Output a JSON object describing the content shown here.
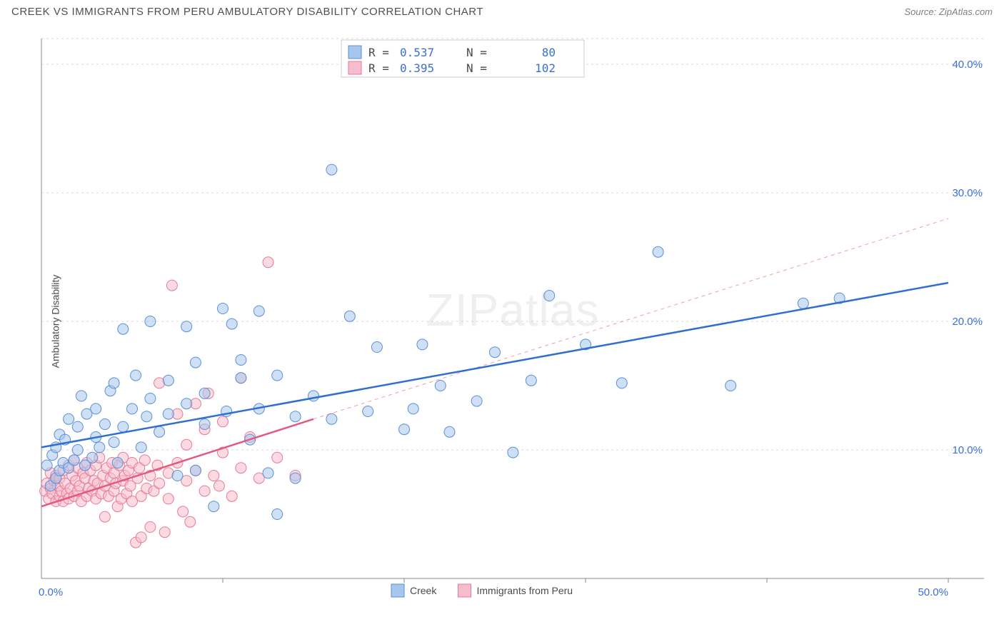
{
  "title": "CREEK VS IMMIGRANTS FROM PERU AMBULATORY DISABILITY CORRELATION CHART",
  "source": "Source: ZipAtlas.com",
  "ylabel": "Ambulatory Disability",
  "watermark_a": "ZIP",
  "watermark_b": "atlas",
  "chart": {
    "type": "scatter",
    "xlim": [
      0,
      50
    ],
    "ylim": [
      0,
      42
    ],
    "xtick_step": 10,
    "ytick_step": 10,
    "xaxis_labels": [
      "0.0%",
      "50.0%"
    ],
    "yaxis_labels": [
      "10.0%",
      "20.0%",
      "30.0%",
      "40.0%"
    ],
    "grid_color": "#d8d8d8",
    "axis_color": "#888888",
    "background_color": "#ffffff",
    "series": [
      {
        "name": "Creek",
        "R": "0.537",
        "N": "80",
        "fill": "#a7c6ed",
        "stroke": "#5a8fd6",
        "line_color": "#2f6fd0",
        "line": {
          "x1": 0,
          "y1": 10.2,
          "x2": 50,
          "y2": 23.0,
          "dash": false,
          "width": 2.5
        },
        "points": [
          [
            0.3,
            8.8
          ],
          [
            0.5,
            7.2
          ],
          [
            0.6,
            9.6
          ],
          [
            0.8,
            7.8
          ],
          [
            0.8,
            10.2
          ],
          [
            1.0,
            8.4
          ],
          [
            1.0,
            11.2
          ],
          [
            1.2,
            9.0
          ],
          [
            1.3,
            10.8
          ],
          [
            1.5,
            8.6
          ],
          [
            1.5,
            12.4
          ],
          [
            1.8,
            9.2
          ],
          [
            2.0,
            10.0
          ],
          [
            2.0,
            11.8
          ],
          [
            2.2,
            14.2
          ],
          [
            2.4,
            8.8
          ],
          [
            2.5,
            12.8
          ],
          [
            2.8,
            9.4
          ],
          [
            3.0,
            11.0
          ],
          [
            3.0,
            13.2
          ],
          [
            3.2,
            10.2
          ],
          [
            3.5,
            12.0
          ],
          [
            3.8,
            14.6
          ],
          [
            4.0,
            10.6
          ],
          [
            4.0,
            15.2
          ],
          [
            4.2,
            9.0
          ],
          [
            4.5,
            11.8
          ],
          [
            4.5,
            19.4
          ],
          [
            5.0,
            13.2
          ],
          [
            5.2,
            15.8
          ],
          [
            5.5,
            10.2
          ],
          [
            5.8,
            12.6
          ],
          [
            6.0,
            14.0
          ],
          [
            6.0,
            20.0
          ],
          [
            6.5,
            11.4
          ],
          [
            7.0,
            12.8
          ],
          [
            7.0,
            15.4
          ],
          [
            7.5,
            8.0
          ],
          [
            8.0,
            13.6
          ],
          [
            8.0,
            19.6
          ],
          [
            8.5,
            16.8
          ],
          [
            8.5,
            8.4
          ],
          [
            9.0,
            12.0
          ],
          [
            9.0,
            14.4
          ],
          [
            9.5,
            5.6
          ],
          [
            10.0,
            21.0
          ],
          [
            10.2,
            13.0
          ],
          [
            10.5,
            19.8
          ],
          [
            11.0,
            15.6
          ],
          [
            11.0,
            17.0
          ],
          [
            11.5,
            10.8
          ],
          [
            12.0,
            13.2
          ],
          [
            12.0,
            20.8
          ],
          [
            12.5,
            8.2
          ],
          [
            13.0,
            15.8
          ],
          [
            13.0,
            5.0
          ],
          [
            14.0,
            12.6
          ],
          [
            14.0,
            7.8
          ],
          [
            15.0,
            14.2
          ],
          [
            16.0,
            31.8
          ],
          [
            16.0,
            12.4
          ],
          [
            17.0,
            20.4
          ],
          [
            18.0,
            13.0
          ],
          [
            18.5,
            18.0
          ],
          [
            20.0,
            11.6
          ],
          [
            20.5,
            13.2
          ],
          [
            21.0,
            18.2
          ],
          [
            22.0,
            15.0
          ],
          [
            22.5,
            11.4
          ],
          [
            24.0,
            13.8
          ],
          [
            25.0,
            17.6
          ],
          [
            26.0,
            9.8
          ],
          [
            27.0,
            15.4
          ],
          [
            28.0,
            22.0
          ],
          [
            30.0,
            18.2
          ],
          [
            32.0,
            15.2
          ],
          [
            34.0,
            25.4
          ],
          [
            38.0,
            15.0
          ],
          [
            42.0,
            21.4
          ],
          [
            44.0,
            21.8
          ]
        ]
      },
      {
        "name": "Immigrants from Peru",
        "R": "0.395",
        "N": "102",
        "fill": "#f7bccb",
        "stroke": "#e77a99",
        "line_color": "#e35a80",
        "line": {
          "x1": 0,
          "y1": 5.6,
          "x2": 15,
          "y2": 12.4,
          "dash": false,
          "width": 2.5
        },
        "extrapolate": {
          "x1": 15,
          "y1": 12.4,
          "x2": 50,
          "y2": 28.0,
          "dash": true,
          "width": 1
        },
        "points": [
          [
            0.2,
            6.8
          ],
          [
            0.3,
            7.4
          ],
          [
            0.4,
            6.2
          ],
          [
            0.5,
            7.0
          ],
          [
            0.5,
            8.2
          ],
          [
            0.6,
            6.6
          ],
          [
            0.7,
            7.6
          ],
          [
            0.8,
            6.0
          ],
          [
            0.8,
            8.0
          ],
          [
            0.9,
            7.2
          ],
          [
            1.0,
            6.4
          ],
          [
            1.0,
            7.8
          ],
          [
            1.1,
            6.8
          ],
          [
            1.2,
            8.4
          ],
          [
            1.2,
            6.0
          ],
          [
            1.3,
            7.4
          ],
          [
            1.4,
            6.6
          ],
          [
            1.5,
            8.8
          ],
          [
            1.5,
            6.2
          ],
          [
            1.6,
            7.0
          ],
          [
            1.7,
            8.0
          ],
          [
            1.8,
            6.4
          ],
          [
            1.8,
            9.2
          ],
          [
            1.9,
            7.6
          ],
          [
            2.0,
            6.8
          ],
          [
            2.0,
            8.6
          ],
          [
            2.1,
            7.2
          ],
          [
            2.2,
            6.0
          ],
          [
            2.3,
            8.2
          ],
          [
            2.4,
            7.8
          ],
          [
            2.5,
            6.4
          ],
          [
            2.5,
            9.0
          ],
          [
            2.6,
            7.0
          ],
          [
            2.7,
            8.4
          ],
          [
            2.8,
            6.8
          ],
          [
            2.9,
            7.6
          ],
          [
            3.0,
            6.2
          ],
          [
            3.0,
            8.8
          ],
          [
            3.1,
            7.4
          ],
          [
            3.2,
            9.4
          ],
          [
            3.3,
            6.6
          ],
          [
            3.4,
            8.0
          ],
          [
            3.5,
            7.2
          ],
          [
            3.5,
            4.8
          ],
          [
            3.6,
            8.6
          ],
          [
            3.7,
            6.4
          ],
          [
            3.8,
            7.8
          ],
          [
            3.9,
            9.0
          ],
          [
            4.0,
            6.8
          ],
          [
            4.0,
            8.2
          ],
          [
            4.1,
            7.4
          ],
          [
            4.2,
            5.6
          ],
          [
            4.3,
            8.8
          ],
          [
            4.4,
            6.2
          ],
          [
            4.5,
            7.6
          ],
          [
            4.5,
            9.4
          ],
          [
            4.6,
            8.0
          ],
          [
            4.7,
            6.6
          ],
          [
            4.8,
            8.4
          ],
          [
            4.9,
            7.2
          ],
          [
            5.0,
            6.0
          ],
          [
            5.0,
            9.0
          ],
          [
            5.2,
            2.8
          ],
          [
            5.3,
            7.8
          ],
          [
            5.4,
            8.6
          ],
          [
            5.5,
            6.4
          ],
          [
            5.5,
            3.2
          ],
          [
            5.7,
            9.2
          ],
          [
            5.8,
            7.0
          ],
          [
            6.0,
            8.0
          ],
          [
            6.0,
            4.0
          ],
          [
            6.2,
            6.8
          ],
          [
            6.4,
            8.8
          ],
          [
            6.5,
            7.4
          ],
          [
            6.5,
            15.2
          ],
          [
            6.8,
            3.6
          ],
          [
            7.0,
            8.2
          ],
          [
            7.0,
            6.2
          ],
          [
            7.2,
            22.8
          ],
          [
            7.5,
            9.0
          ],
          [
            7.5,
            12.8
          ],
          [
            7.8,
            5.2
          ],
          [
            8.0,
            7.6
          ],
          [
            8.0,
            10.4
          ],
          [
            8.2,
            4.4
          ],
          [
            8.5,
            8.4
          ],
          [
            8.5,
            13.6
          ],
          [
            9.0,
            6.8
          ],
          [
            9.0,
            11.6
          ],
          [
            9.2,
            14.4
          ],
          [
            9.5,
            8.0
          ],
          [
            9.8,
            7.2
          ],
          [
            10.0,
            9.8
          ],
          [
            10.0,
            12.2
          ],
          [
            10.5,
            6.4
          ],
          [
            11.0,
            8.6
          ],
          [
            11.0,
            15.6
          ],
          [
            11.5,
            11.0
          ],
          [
            12.0,
            7.8
          ],
          [
            12.5,
            24.6
          ],
          [
            13.0,
            9.4
          ],
          [
            14.0,
            8.0
          ]
        ]
      }
    ]
  },
  "legend_bottom": [
    {
      "label": "Creek",
      "fill": "#a7c6ed",
      "stroke": "#5a8fd6"
    },
    {
      "label": "Immigrants from Peru",
      "fill": "#f7bccb",
      "stroke": "#e77a99"
    }
  ],
  "legend_top_stat_color": "#3b6fd6",
  "legend_top_label_color": "#4a4a4a"
}
